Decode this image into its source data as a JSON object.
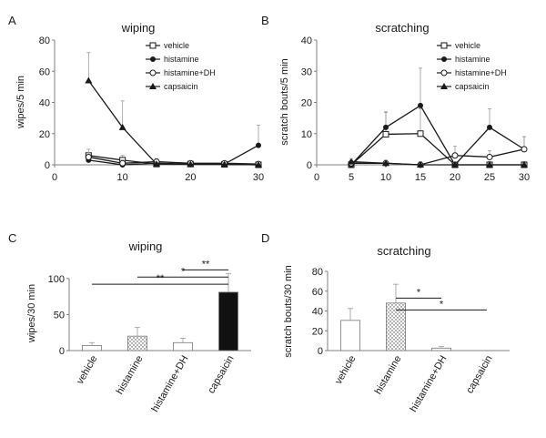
{
  "colors": {
    "line": "#1a1a1a",
    "err": "#9a9a9a",
    "axis": "#808080"
  },
  "panels": [
    {
      "letter": "A",
      "chart_data": {
        "type": "line",
        "title": "wiping",
        "xlabel": "",
        "ylabel": "wipes/5 min",
        "xlim": [
          0,
          30
        ],
        "ylim": [
          0,
          80
        ],
        "xticks": [
          0,
          10,
          20,
          30
        ],
        "yticks": [
          0,
          20,
          40,
          60,
          80
        ],
        "legend_position": "top-right",
        "x": [
          5,
          10,
          15,
          20,
          25,
          30
        ],
        "series": [
          {
            "name": "vehicle",
            "marker": "open-square",
            "values": [
              6,
              3,
              0.5,
              0.5,
              0.3,
              0
            ],
            "errors": [
              4,
              3,
              1,
              1,
              1,
              0.5
            ]
          },
          {
            "name": "histamine",
            "marker": "filled-circle",
            "values": [
              3,
              0,
              1,
              0.5,
              0.5,
              12.5
            ],
            "errors": [
              2,
              1,
              1,
              1,
              1,
              13
            ]
          },
          {
            "name": "histamine+DH",
            "marker": "open-circle",
            "values": [
              5,
              1,
              2,
              1,
              1,
              0.5
            ],
            "errors": [
              3,
              2,
              2,
              1,
              1,
              1
            ]
          },
          {
            "name": "capsaicin",
            "marker": "filled-triangle",
            "values": [
              54,
              24,
              0.5,
              0.3,
              0.3,
              0
            ],
            "errors": [
              18,
              17,
              1,
              1,
              1,
              0.5
            ]
          }
        ]
      }
    },
    {
      "letter": "B",
      "chart_data": {
        "type": "line",
        "title": "scratching",
        "xlabel": "",
        "ylabel": "scratch bouts/5 min",
        "xlim": [
          0,
          30
        ],
        "ylim": [
          0,
          40
        ],
        "xticks": [
          0,
          5,
          10,
          15,
          20,
          25,
          30
        ],
        "yticks": [
          0,
          10,
          20,
          30,
          40
        ],
        "legend_position": "top-right",
        "x": [
          5,
          10,
          15,
          20,
          25,
          30
        ],
        "series": [
          {
            "name": "vehicle",
            "marker": "open-square",
            "values": [
              0,
              9.8,
              10,
              0,
              0,
              0
            ],
            "errors": [
              1.5,
              7,
              8,
              1,
              1,
              1
            ]
          },
          {
            "name": "histamine",
            "marker": "filled-circle",
            "values": [
              0,
              12,
              19,
              0,
              12,
              5
            ],
            "errors": [
              1,
              5,
              12,
              1,
              6,
              4
            ]
          },
          {
            "name": "histamine+DH",
            "marker": "open-circle",
            "values": [
              0.5,
              0.5,
              0,
              3,
              2.5,
              5
            ],
            "errors": [
              1,
              1,
              1,
              3,
              2,
              4
            ]
          },
          {
            "name": "capsaicin",
            "marker": "filled-triangle",
            "values": [
              1,
              0.5,
              0,
              0,
              0,
              0
            ],
            "errors": [
              1,
              1,
              0.5,
              0.5,
              0.5,
              0.5
            ]
          }
        ]
      }
    },
    {
      "letter": "C",
      "chart_data": {
        "type": "bar",
        "title": "wiping",
        "xlabel": "",
        "ylabel": "wipes/30 min",
        "ylim": [
          0,
          120
        ],
        "yticks": [
          0,
          50,
          100
        ],
        "categories": [
          "vehicle",
          "histamine",
          "histamine+DH",
          "capsaicin"
        ],
        "fills": [
          "white",
          "dotted",
          "white",
          "black"
        ],
        "values": [
          7,
          20,
          11,
          81
        ],
        "errors": [
          4,
          12,
          6,
          26
        ],
        "significance": [
          {
            "from": 0,
            "to": 3,
            "label": "**",
            "y": 92
          },
          {
            "from": 1,
            "to": 3,
            "label": "*",
            "y": 102
          },
          {
            "from": 2,
            "to": 3,
            "label": "**",
            "y": 112
          }
        ]
      }
    },
    {
      "letter": "D",
      "chart_data": {
        "type": "bar",
        "title": "scratching",
        "xlabel": "",
        "ylabel": "scratch bouts/30 min",
        "ylim": [
          0,
          80
        ],
        "yticks": [
          0,
          20,
          40,
          60,
          80
        ],
        "categories": [
          "vehicle",
          "histamine",
          "histamine+DH",
          "capsaicin"
        ],
        "fills": [
          "white",
          "dotted",
          "white",
          "white"
        ],
        "values": [
          30.5,
          48,
          2.5,
          0
        ],
        "errors": [
          12,
          19,
          1.5,
          0
        ],
        "significance": [
          {
            "from": 1,
            "to": 2,
            "label": "*",
            "y": 53
          },
          {
            "from": 1,
            "to": 3,
            "label": "*",
            "y": 41
          }
        ]
      }
    }
  ]
}
